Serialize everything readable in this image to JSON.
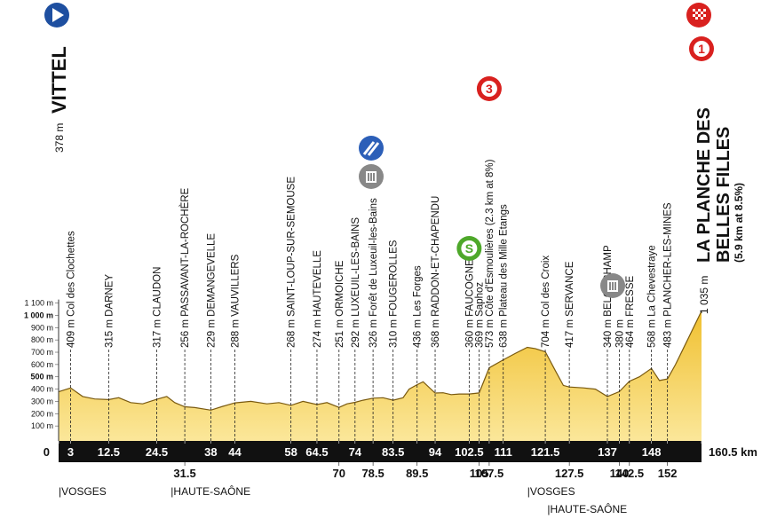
{
  "chart_data": {
    "type": "area",
    "start": {
      "altitude": "378 m",
      "name": "VITTEL"
    },
    "finish": {
      "altitude": "1 035 m",
      "name": [
        "LA PLANCHE DES",
        "BELLES FILLES"
      ],
      "note": "(5.9 km at 8.5%)"
    },
    "color": "#f2c12e",
    "x": [
      0,
      3,
      6,
      9,
      12.5,
      15,
      18,
      21,
      24.5,
      27,
      29,
      31.5,
      34,
      38,
      41,
      44,
      48,
      52,
      55,
      58,
      61,
      64.5,
      67,
      70,
      72,
      74,
      76,
      78.5,
      81,
      83.5,
      86,
      87.5,
      89.5,
      91,
      94,
      96,
      98,
      100,
      102.5,
      105,
      107.5,
      111,
      114,
      117,
      119,
      121.5,
      124,
      126,
      127.5,
      131,
      134,
      137,
      140,
      142.5,
      145,
      148,
      150,
      152,
      154,
      157,
      160.5
    ],
    "values": [
      378,
      409,
      340,
      320,
      315,
      330,
      290,
      280,
      317,
      340,
      290,
      256,
      250,
      229,
      260,
      288,
      300,
      280,
      290,
      268,
      300,
      274,
      290,
      251,
      280,
      292,
      310,
      326,
      330,
      310,
      330,
      400,
      436,
      460,
      368,
      370,
      355,
      360,
      360,
      369,
      573,
      638,
      690,
      740,
      730,
      704,
      550,
      430,
      417,
      410,
      400,
      340,
      380,
      464,
      500,
      568,
      470,
      483,
      600,
      800,
      1035
    ],
    "xlim": [
      0,
      160.5
    ],
    "ylim": [
      0,
      1100
    ],
    "xticks": [
      0,
      3,
      12.5,
      24.5,
      31.5,
      38,
      44,
      58,
      64.5,
      70,
      74,
      78.5,
      83.5,
      89.5,
      94,
      102.5,
      105,
      107.5,
      111,
      121.5,
      127.5,
      137,
      140,
      142.5,
      148,
      152,
      {
        "value": 160.5,
        "label": "160.5 km"
      }
    ],
    "yticks": [
      {
        "value": 100,
        "label": "100 m"
      },
      {
        "value": 200,
        "label": "200 m"
      },
      {
        "value": 300,
        "label": "300 m"
      },
      {
        "value": 400,
        "label": "400 m"
      },
      {
        "value": 500,
        "label": "500 m"
      },
      {
        "value": 600,
        "label": "600 m"
      },
      {
        "value": 700,
        "label": "700 m"
      },
      {
        "value": 800,
        "label": "800 m"
      },
      {
        "value": 900,
        "label": "900 m"
      },
      {
        "value": 1000,
        "label": "1 000 m"
      },
      {
        "value": 1100,
        "label": "1 100 m"
      }
    ],
    "waypoints": [
      {
        "x": 3,
        "label": "409 m Col des Clochettes"
      },
      {
        "x": 12.5,
        "label": "315 m DARNEY"
      },
      {
        "x": 24.5,
        "label": "317 m CLAUDON"
      },
      {
        "x": 31.5,
        "label": "256 m PASSAVANT-LA-ROCHÈRE"
      },
      {
        "x": 38,
        "label": "229 m DEMANGEVELLE"
      },
      {
        "x": 44,
        "label": "288 m VAUVILLERS"
      },
      {
        "x": 58,
        "label": "268 m SAINT-LOUP-SUR-SEMOUSE"
      },
      {
        "x": 64.5,
        "label": "274 m HAUTEVELLE"
      },
      {
        "x": 70,
        "label": "251 m ORMOICHE"
      },
      {
        "x": 74,
        "label": "292 m LUXEUIL-LES-BAINS"
      },
      {
        "x": 78.5,
        "label": "326 m Forêt de Luxeuil-les-Bains"
      },
      {
        "x": 83.5,
        "label": "310 m FOUGEROLLES"
      },
      {
        "x": 89.5,
        "label": "436 m Les Forges"
      },
      {
        "x": 94,
        "label": "368 m RADDON-ET-CHAPENDU"
      },
      {
        "x": 102.5,
        "label": "360 m FAUCOGNEY"
      },
      {
        "x": 105,
        "label": "369 m Saphoz"
      },
      {
        "x": 107.5,
        "label": "573 m Côte d'Esmoulières (2.3 km at 8%)"
      },
      {
        "x": 111,
        "label": "638 m Plateau des Mille Etangs"
      },
      {
        "x": 121.5,
        "label": "704 m Col des Croix"
      },
      {
        "x": 127.5,
        "label": "417 m SERVANCE"
      },
      {
        "x": 137,
        "label": "340 m BELONCHAMP"
      },
      {
        "x": 140,
        "label": "380 m"
      },
      {
        "x": 142.5,
        "label": "464 m FRESSE"
      },
      {
        "x": 148,
        "label": "568 m La Chevestraye"
      },
      {
        "x": 152,
        "label": "483 m PLANCHER-LES-MINES"
      }
    ],
    "markers": [
      {
        "x": 102.5,
        "label": "S",
        "color": "#4ea82a"
      },
      {
        "x": 107.5,
        "label": "3",
        "color": "#d9211f"
      },
      {
        "x": 160.5,
        "label": "1",
        "color": "#d9211f"
      }
    ],
    "regions": [
      {
        "x": 0,
        "label": "|VOSGES"
      },
      {
        "x": 28,
        "label": "|HAUTE-SAÔNE"
      },
      {
        "x": 117,
        "label": "|VOSGES"
      },
      {
        "x": 122,
        "label": "|HAUTE-SAÔNE"
      }
    ]
  }
}
